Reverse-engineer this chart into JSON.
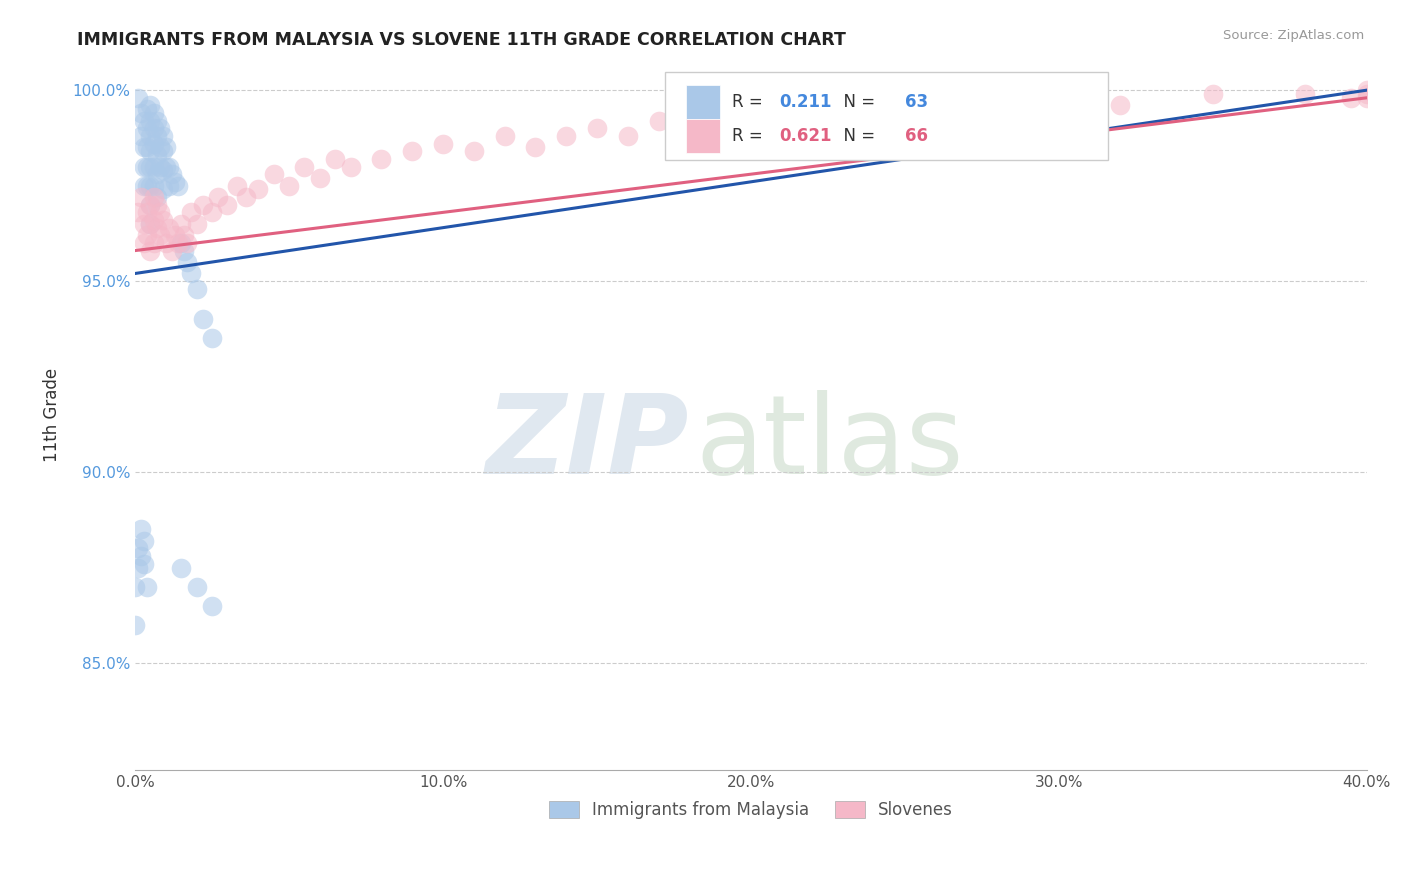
{
  "title": "IMMIGRANTS FROM MALAYSIA VS SLOVENE 11TH GRADE CORRELATION CHART",
  "source_text": "Source: ZipAtlas.com",
  "ylabel": "11th Grade",
  "x_min": 0.0,
  "x_max": 0.4,
  "y_min": 0.822,
  "y_max": 1.008,
  "x_ticks": [
    0.0,
    0.1,
    0.2,
    0.3,
    0.4
  ],
  "x_tick_labels": [
    "0.0%",
    "10.0%",
    "20.0%",
    "30.0%",
    "40.0%"
  ],
  "y_ticks": [
    0.85,
    0.9,
    0.95,
    1.0
  ],
  "y_tick_labels": [
    "85.0%",
    "90.0%",
    "95.0%",
    "100.0%"
  ],
  "blue_color": "#aac8e8",
  "pink_color": "#f5b8c8",
  "blue_line_color": "#2255aa",
  "pink_line_color": "#e06080",
  "legend_blue_label": "Immigrants from Malaysia",
  "legend_pink_label": "Slovenes",
  "r_blue": "0.211",
  "n_blue": "63",
  "r_pink": "0.621",
  "n_pink": "66",
  "blue_r_color": "#4488dd",
  "blue_n_color": "#4488dd",
  "pink_r_color": "#e06080",
  "pink_n_color": "#e06080",
  "blue_scatter_x": [
    0.001,
    0.002,
    0.002,
    0.003,
    0.003,
    0.003,
    0.003,
    0.004,
    0.004,
    0.004,
    0.004,
    0.004,
    0.005,
    0.005,
    0.005,
    0.005,
    0.005,
    0.005,
    0.005,
    0.005,
    0.006,
    0.006,
    0.006,
    0.006,
    0.006,
    0.007,
    0.007,
    0.007,
    0.007,
    0.007,
    0.008,
    0.008,
    0.008,
    0.009,
    0.009,
    0.009,
    0.009,
    0.01,
    0.01,
    0.011,
    0.011,
    0.012,
    0.013,
    0.014,
    0.015,
    0.016,
    0.017,
    0.018,
    0.02,
    0.022,
    0.025,
    0.0,
    0.0,
    0.001,
    0.001,
    0.002,
    0.002,
    0.003,
    0.003,
    0.004,
    0.015,
    0.02,
    0.025
  ],
  "blue_scatter_y": [
    0.998,
    0.994,
    0.988,
    0.992,
    0.985,
    0.98,
    0.975,
    0.995,
    0.99,
    0.985,
    0.98,
    0.975,
    0.996,
    0.992,
    0.988,
    0.984,
    0.98,
    0.975,
    0.97,
    0.965,
    0.994,
    0.99,
    0.986,
    0.98,
    0.975,
    0.992,
    0.988,
    0.983,
    0.978,
    0.972,
    0.99,
    0.985,
    0.98,
    0.988,
    0.984,
    0.979,
    0.974,
    0.985,
    0.98,
    0.98,
    0.975,
    0.978,
    0.976,
    0.975,
    0.96,
    0.958,
    0.955,
    0.952,
    0.948,
    0.94,
    0.935,
    0.87,
    0.86,
    0.88,
    0.875,
    0.885,
    0.878,
    0.882,
    0.876,
    0.87,
    0.875,
    0.87,
    0.865
  ],
  "pink_scatter_x": [
    0.001,
    0.002,
    0.003,
    0.003,
    0.004,
    0.004,
    0.005,
    0.005,
    0.005,
    0.006,
    0.006,
    0.006,
    0.007,
    0.007,
    0.008,
    0.008,
    0.009,
    0.01,
    0.011,
    0.012,
    0.013,
    0.014,
    0.015,
    0.016,
    0.017,
    0.018,
    0.02,
    0.022,
    0.025,
    0.027,
    0.03,
    0.033,
    0.036,
    0.04,
    0.045,
    0.05,
    0.055,
    0.06,
    0.065,
    0.07,
    0.08,
    0.09,
    0.1,
    0.11,
    0.12,
    0.13,
    0.14,
    0.15,
    0.16,
    0.17,
    0.18,
    0.19,
    0.2,
    0.21,
    0.22,
    0.24,
    0.26,
    0.28,
    0.3,
    0.32,
    0.35,
    0.38,
    0.395,
    0.4,
    0.4,
    0.4
  ],
  "pink_scatter_y": [
    0.968,
    0.972,
    0.96,
    0.965,
    0.968,
    0.962,
    0.97,
    0.965,
    0.958,
    0.972,
    0.966,
    0.96,
    0.97,
    0.964,
    0.968,
    0.962,
    0.966,
    0.96,
    0.964,
    0.958,
    0.962,
    0.96,
    0.965,
    0.962,
    0.96,
    0.968,
    0.965,
    0.97,
    0.968,
    0.972,
    0.97,
    0.975,
    0.972,
    0.974,
    0.978,
    0.975,
    0.98,
    0.977,
    0.982,
    0.98,
    0.982,
    0.984,
    0.986,
    0.984,
    0.988,
    0.985,
    0.988,
    0.99,
    0.988,
    0.992,
    0.99,
    0.994,
    0.992,
    0.994,
    0.996,
    0.995,
    0.998,
    0.996,
    0.998,
    0.996,
    0.999,
    0.999,
    0.998,
    1.0,
    0.999,
    0.998
  ],
  "blue_trend_x0": 0.0,
  "blue_trend_x1": 0.4,
  "blue_trend_y0": 0.952,
  "blue_trend_y1": 1.0,
  "pink_trend_x0": 0.0,
  "pink_trend_x1": 0.4,
  "pink_trend_y0": 0.958,
  "pink_trend_y1": 0.998
}
